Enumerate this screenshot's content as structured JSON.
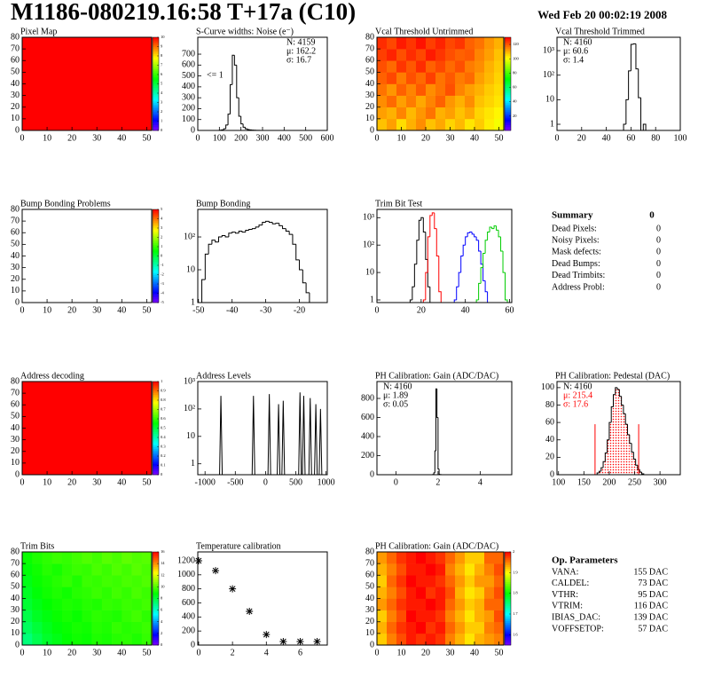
{
  "header": {
    "title": "M1186-080219.16:58 T+17a (C10)",
    "date": "Wed Feb 20 00:02:19 2008"
  },
  "chart_data": [
    {
      "type": "heatmap",
      "title": "Pixel Map",
      "xlim": [
        0,
        52
      ],
      "ylim": [
        0,
        80
      ],
      "xticks": [
        0,
        10,
        20,
        30,
        40,
        50
      ],
      "yticks": [
        0,
        10,
        20,
        30,
        40,
        50,
        60,
        70,
        80
      ],
      "zlim": [
        0,
        10
      ],
      "zticks": [
        0,
        1,
        2,
        3,
        4,
        5,
        6,
        7,
        8,
        9,
        10
      ],
      "z": [
        [
          10
        ]
      ]
    },
    {
      "type": "histogram",
      "title": "S-Curve widths: Noise (e⁻)",
      "color": "#000000",
      "xlim": [
        0,
        600
      ],
      "ylim": [
        0,
        855
      ],
      "xticks": [
        0,
        100,
        200,
        300,
        400,
        500,
        600
      ],
      "yticks": [
        0,
        100,
        200,
        300,
        400,
        500,
        600,
        700
      ],
      "bins": [
        100,
        110,
        120,
        130,
        140,
        150,
        160,
        170,
        180,
        190,
        200,
        210,
        220,
        230,
        240,
        250,
        260,
        270,
        280,
        290,
        300
      ],
      "values": [
        2,
        5,
        15,
        50,
        150,
        420,
        690,
        600,
        300,
        130,
        60,
        30,
        15,
        8,
        5,
        3,
        2,
        1,
        1,
        0
      ],
      "stats": [
        "N: 4159",
        "μ: 162.2",
        "σ: 16.7"
      ],
      "stats_corner": "top-right",
      "annotation": "<= 1"
    },
    {
      "type": "heatmap",
      "title": "Vcal Threshold Untrimmed",
      "xlim": [
        0,
        52
      ],
      "ylim": [
        0,
        80
      ],
      "xticks": [
        0,
        10,
        20,
        30,
        40,
        50
      ],
      "yticks": [
        0,
        10,
        20,
        30,
        40,
        50,
        60,
        70,
        80
      ],
      "zlim": [
        0,
        130
      ],
      "zticks": [
        20,
        40,
        60,
        80,
        100,
        120
      ],
      "z": [
        [
          108,
          112,
          105,
          110,
          114,
          108,
          111,
          106,
          109,
          104,
          107,
          103,
          100
        ],
        [
          112,
          110,
          115,
          109,
          113,
          117,
          110,
          112,
          108,
          111,
          106,
          104,
          102
        ],
        [
          114,
          118,
          112,
          116,
          111,
          115,
          119,
          113,
          110,
          114,
          108,
          106,
          104
        ],
        [
          117,
          113,
          119,
          115,
          120,
          114,
          117,
          121,
          115,
          112,
          110,
          107,
          105
        ],
        [
          119,
          122,
          116,
          121,
          118,
          123,
          117,
          120,
          116,
          118,
          112,
          109,
          106
        ],
        [
          121,
          118,
          124,
          120,
          125,
          119,
          122,
          118,
          121,
          116,
          114,
          110,
          107
        ],
        [
          123,
          126,
          121,
          125,
          122,
          127,
          124,
          121,
          119,
          120,
          115,
          112,
          108
        ],
        [
          125,
          122,
          127,
          124,
          128,
          123,
          126,
          122,
          124,
          119,
          117,
          113,
          110
        ]
      ]
    },
    {
      "type": "histogram",
      "title": "Vcal Threshold Trimmed",
      "color": "#000000",
      "log": true,
      "xlim": [
        0,
        100
      ],
      "ylim": [
        0.56,
        3500
      ],
      "xticks": [
        0,
        20,
        40,
        60,
        80,
        100
      ],
      "yticks": [
        1,
        10,
        {
          "value": 100,
          "label": "10²"
        },
        {
          "value": 1000,
          "label": "10³"
        }
      ],
      "bins": [
        54,
        56,
        58,
        60,
        62,
        64,
        66,
        68,
        70,
        72
      ],
      "values": [
        1,
        10,
        150,
        1800,
        1900,
        180,
        12,
        0,
        1
      ],
      "stats": [
        "N: 4160",
        "μ: 60.6",
        "σ:  1.4"
      ],
      "stats_corner": "top-left"
    },
    {
      "type": "heatmap",
      "title": "Bump Bonding Problems",
      "xlim": [
        0,
        52
      ],
      "ylim": [
        0,
        80
      ],
      "xticks": [
        0,
        10,
        20,
        30,
        40,
        50
      ],
      "yticks": [
        0,
        10,
        20,
        30,
        40,
        50,
        60,
        70,
        80
      ],
      "zlim": [
        -5,
        5
      ],
      "zticks": [
        -5,
        -4,
        -3,
        -2,
        -1,
        0,
        1,
        2,
        3,
        4,
        5
      ]
    },
    {
      "type": "histogram",
      "title": "Bump Bonding",
      "color": "#000000",
      "log": true,
      "xlim": [
        -50.2,
        -11.7
      ],
      "ylim": [
        1,
        690
      ],
      "xticks": [
        -50,
        -40,
        -30,
        -20
      ],
      "yticks": [
        1,
        10,
        {
          "value": 100,
          "label": "10²"
        }
      ],
      "bins": [
        -50,
        -49,
        -48,
        -47,
        -46,
        -45,
        -44,
        -43,
        -42,
        -41,
        -40,
        -39,
        -38,
        -37,
        -36,
        -35,
        -34,
        -33,
        -32,
        -31,
        -30,
        -29,
        -28,
        -27,
        -26,
        -25,
        -24,
        -23,
        -22,
        -21,
        -20,
        -19,
        -18,
        -17,
        -16
      ],
      "values": [
        1,
        5,
        30,
        60,
        80,
        70,
        100,
        110,
        100,
        130,
        140,
        130,
        150,
        140,
        160,
        170,
        180,
        200,
        230,
        280,
        300,
        280,
        250,
        260,
        220,
        180,
        150,
        120,
        60,
        20,
        10,
        4,
        2,
        1
      ]
    },
    {
      "type": "histogram",
      "title": "Trim Bit Test",
      "log": true,
      "xlim": [
        0,
        61
      ],
      "ylim": [
        0.8,
        2000
      ],
      "xticks": [
        0,
        20,
        40,
        60
      ],
      "yticks": [
        1,
        10,
        {
          "value": 100,
          "label": "10²"
        },
        {
          "value": 1000,
          "label": "10³"
        }
      ],
      "series": [
        {
          "color": "#000000",
          "bins": [
            15,
            16,
            17,
            18,
            19,
            20,
            21,
            22,
            23,
            24,
            25
          ],
          "values": [
            1,
            3,
            20,
            150,
            800,
            1000,
            300,
            30,
            3,
            0
          ]
        },
        {
          "color": "#ff0000",
          "bins": [
            21,
            22,
            23,
            24,
            25,
            26,
            27,
            28,
            29
          ],
          "values": [
            1,
            10,
            200,
            1200,
            1500,
            400,
            40,
            2
          ]
        },
        {
          "color": "#0000ff",
          "bins": [
            35,
            36,
            37,
            38,
            39,
            40,
            41,
            42,
            43,
            44,
            45,
            46,
            47,
            48,
            49,
            50,
            51
          ],
          "values": [
            1,
            3,
            10,
            40,
            100,
            200,
            280,
            300,
            250,
            200,
            150,
            60,
            20,
            5,
            2,
            0
          ]
        },
        {
          "color": "#00cc00",
          "bins": [
            45,
            46,
            47,
            48,
            49,
            50,
            51,
            52,
            53,
            54,
            55,
            56,
            57,
            58,
            59
          ],
          "values": [
            1,
            4,
            15,
            50,
            150,
            300,
            450,
            400,
            500,
            350,
            200,
            60,
            10,
            1
          ]
        }
      ]
    },
    {
      "type": "heatmap",
      "title": "Address decoding",
      "xlim": [
        0,
        52
      ],
      "ylim": [
        0,
        80
      ],
      "xticks": [
        0,
        10,
        20,
        30,
        40,
        50
      ],
      "yticks": [
        0,
        10,
        20,
        30,
        40,
        50,
        60,
        70,
        80
      ],
      "zlim": [
        0,
        1
      ],
      "zticks": [
        0,
        0.1,
        0.2,
        0.3,
        0.4,
        0.5,
        0.6,
        0.7,
        0.8,
        0.9,
        1
      ],
      "z": [
        [
          1
        ]
      ]
    },
    {
      "type": "spikes",
      "title": "Address Levels",
      "color": "#000000",
      "log": true,
      "xlim": [
        -1120,
        1020
      ],
      "ylim": [
        0.4,
        1000
      ],
      "xticks": [
        -1000,
        -500,
        0,
        500,
        1000
      ],
      "yticks": [
        1,
        10,
        {
          "value": 100,
          "label": "10²"
        },
        {
          "value": 1000,
          "label": "10³"
        }
      ],
      "x": [
        -738,
        -200,
        62,
        215,
        292,
        569,
        631,
        738,
        831,
        908
      ],
      "values": [
        300,
        300,
        350,
        150,
        200,
        400,
        300,
        250,
        150,
        100
      ]
    },
    {
      "type": "histogram",
      "title": "PH Calibration: Gain (ADC/DAC)",
      "color": "#000000",
      "xlim": [
        -0.9,
        5.5
      ],
      "ylim": [
        0,
        977
      ],
      "xticks": [
        0,
        2,
        4
      ],
      "yticks": [
        0,
        200,
        400,
        600,
        800
      ],
      "bins": [
        1.75,
        1.8,
        1.85,
        1.9,
        1.95,
        2.0,
        2.05,
        2.1,
        2.15
      ],
      "values": [
        2,
        20,
        250,
        900,
        600,
        60,
        5,
        1
      ],
      "stats": [
        "N: 4160",
        "μ: 1.89",
        "σ: 0.05"
      ],
      "stats_corner": "top-left"
    },
    {
      "type": "histogram",
      "title": "PH Calibration: Pedestal (DAC)",
      "color": "#000000",
      "fill_color": "#ff0000",
      "xlim": [
        97,
        340
      ],
      "ylim": [
        0,
        107
      ],
      "xticks": [
        100,
        150,
        200,
        250,
        300
      ],
      "yticks": [
        0,
        20,
        40,
        60,
        80,
        100
      ],
      "bins": [
        176,
        180,
        184,
        188,
        192,
        196,
        200,
        204,
        208,
        212,
        216,
        220,
        224,
        228,
        232,
        236,
        240,
        244,
        248,
        252,
        256,
        260,
        264,
        268
      ],
      "values": [
        2,
        4,
        8,
        15,
        25,
        40,
        60,
        78,
        92,
        100,
        98,
        90,
        80,
        70,
        58,
        46,
        36,
        26,
        18,
        11,
        6,
        3,
        1
      ],
      "stats": [
        "N: 4160"
      ],
      "fit_stats": [
        "μ: 215.4",
        "σ: 17.6"
      ],
      "fit_color": "#ff0000",
      "fit_markers": {
        "x": [
          172,
          258
        ],
        "values": [
          58,
          58
        ]
      },
      "stats_corner": "top-left"
    },
    {
      "type": "heatmap",
      "title": "Trim Bits",
      "xlim": [
        0,
        52
      ],
      "ylim": [
        0,
        80
      ],
      "xticks": [
        0,
        10,
        20,
        30,
        40,
        50
      ],
      "yticks": [
        0,
        10,
        20,
        30,
        40,
        50,
        60,
        70,
        80
      ],
      "zlim": [
        0,
        16
      ],
      "zticks": [
        0,
        2,
        4,
        6,
        8,
        10,
        12,
        14,
        16
      ],
      "z": [
        [
          7.2,
          7.8,
          8.3,
          8.6,
          8.9,
          9.1,
          9.0,
          9.3,
          9.2,
          9.4,
          9.5,
          9.3,
          9.6
        ],
        [
          7.6,
          8.1,
          8.5,
          8.8,
          9.0,
          9.2,
          9.1,
          9.4,
          9.3,
          9.6,
          9.4,
          9.5,
          9.7
        ],
        [
          7.9,
          8.4,
          8.7,
          9.0,
          9.2,
          9.0,
          9.3,
          9.5,
          9.4,
          9.3,
          9.6,
          9.8,
          9.5
        ],
        [
          8.2,
          8.6,
          8.9,
          9.1,
          9.3,
          9.2,
          9.4,
          9.3,
          9.6,
          9.5,
          9.7,
          9.6,
          9.8
        ],
        [
          8.4,
          8.8,
          9.1,
          9.3,
          9.1,
          9.4,
          9.5,
          9.7,
          9.5,
          9.8,
          9.6,
          9.9,
          9.7
        ],
        [
          8.6,
          9.0,
          9.2,
          9.4,
          9.6,
          9.3,
          9.7,
          9.6,
          9.8,
          9.7,
          9.9,
          9.8,
          10.0
        ],
        [
          8.8,
          9.1,
          9.4,
          9.2,
          9.5,
          9.7,
          9.6,
          9.9,
          9.7,
          10.0,
          9.8,
          10.1,
          9.9
        ],
        [
          9.0,
          9.3,
          9.5,
          9.7,
          9.6,
          9.8,
          10.0,
          9.8,
          10.1,
          9.9,
          10.2,
          10.0,
          10.1
        ]
      ]
    },
    {
      "type": "scatter",
      "title": "Temperature calibration",
      "color": "#000000",
      "xlim": [
        -0.05,
        7.6
      ],
      "ylim": [
        0,
        1326
      ],
      "xticks": [
        0,
        2,
        4,
        6
      ],
      "yticks": [
        0,
        200,
        400,
        600,
        800,
        1000,
        1200
      ],
      "x": [
        0,
        1,
        2,
        3,
        4,
        5,
        6,
        7
      ],
      "values": [
        1200,
        1060,
        800,
        480,
        150,
        50,
        50,
        50
      ]
    },
    {
      "type": "heatmap",
      "title": "PH Calibration: Gain (ADC/DAC)",
      "xlim": [
        0,
        52
      ],
      "ylim": [
        0,
        80
      ],
      "xticks": [
        0,
        10,
        20,
        30,
        40,
        50
      ],
      "yticks": [
        0,
        10,
        20,
        30,
        40,
        50,
        60,
        70,
        80
      ],
      "zlim": [
        1.55,
        2.0
      ],
      "zticks": [
        1.6,
        1.7,
        1.8,
        1.9,
        2
      ],
      "z": [
        [
          1.92,
          1.95,
          1.97,
          1.99,
          1.98,
          1.99,
          1.98,
          1.95,
          1.93,
          1.91,
          1.93,
          1.94,
          1.95
        ],
        [
          1.93,
          1.96,
          1.98,
          1.99,
          2.0,
          1.98,
          1.99,
          1.96,
          1.94,
          1.92,
          1.92,
          1.95,
          1.96
        ],
        [
          1.92,
          1.95,
          1.97,
          2.0,
          1.99,
          1.99,
          1.98,
          1.95,
          1.93,
          1.91,
          1.93,
          1.94,
          1.97
        ],
        [
          1.94,
          1.96,
          1.98,
          1.99,
          1.99,
          2.0,
          1.99,
          1.96,
          1.94,
          1.92,
          1.93,
          1.96,
          1.96
        ],
        [
          1.93,
          1.95,
          1.97,
          1.99,
          2.0,
          1.98,
          1.99,
          1.97,
          1.93,
          1.91,
          1.92,
          1.95,
          1.97
        ],
        [
          1.92,
          1.96,
          1.98,
          2.0,
          1.99,
          1.99,
          1.98,
          1.96,
          1.94,
          1.92,
          1.94,
          1.94,
          1.96
        ],
        [
          1.93,
          1.95,
          1.97,
          1.99,
          1.99,
          2.0,
          1.99,
          1.95,
          1.93,
          1.91,
          1.93,
          1.95,
          1.97
        ],
        [
          1.94,
          1.96,
          1.98,
          1.99,
          2.0,
          1.99,
          1.98,
          1.96,
          1.94,
          1.92,
          1.92,
          1.96,
          1.96
        ]
      ]
    }
  ],
  "summary": {
    "title": "Summary",
    "value": 0,
    "rows": [
      [
        "Dead Pixels:",
        0
      ],
      [
        "Noisy Pixels:",
        0
      ],
      [
        "Mask defects:",
        0
      ],
      [
        "Dead Bumps:",
        0
      ],
      [
        "Dead Trimbits:",
        0
      ],
      [
        "Address Probl:",
        0
      ]
    ]
  },
  "op_parameters": {
    "title": "Op. Parameters",
    "rows": [
      [
        "VANA:",
        "155 DAC"
      ],
      [
        "CALDEL:",
        "73 DAC"
      ],
      [
        "VTHR:",
        "95 DAC"
      ],
      [
        "VTRIM:",
        "116 DAC"
      ],
      [
        "IBIAS_DAC:",
        "139 DAC"
      ],
      [
        "VOFFSETOP:",
        "57 DAC"
      ]
    ]
  }
}
